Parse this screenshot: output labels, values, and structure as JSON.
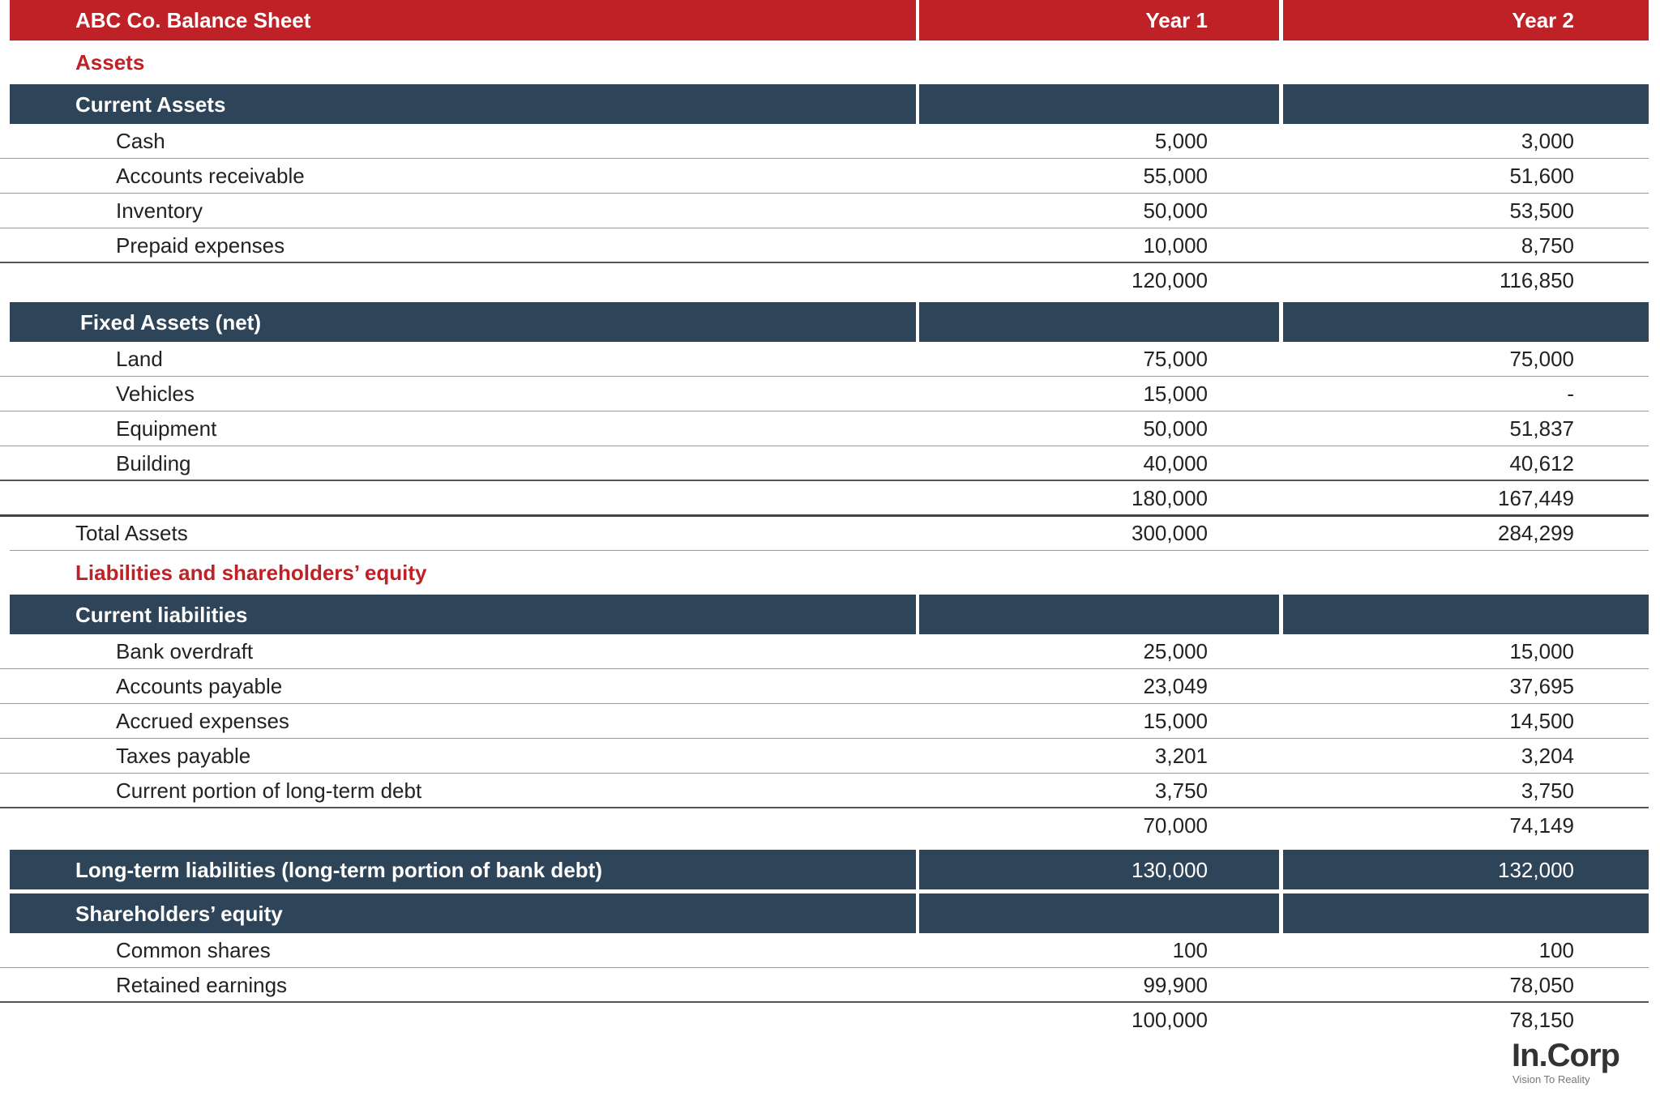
{
  "header": {
    "title": "ABC Co. Balance Sheet",
    "columns": [
      "Year 1",
      "Year 2"
    ]
  },
  "sections": [
    {
      "title": "Assets",
      "groups": [
        {
          "title": "Current Assets",
          "items": [
            {
              "label": "Cash",
              "values": [
                "5,000",
                "3,000"
              ]
            },
            {
              "label": "Accounts receivable",
              "values": [
                "55,000",
                "51,600"
              ]
            },
            {
              "label": "Inventory",
              "values": [
                "50,000",
                "53,500"
              ]
            },
            {
              "label": "Prepaid expenses",
              "values": [
                "10,000",
                "8,750"
              ]
            }
          ],
          "subtotal": [
            "120,000",
            "116,850"
          ]
        },
        {
          "title": "Fixed Assets (net)",
          "items": [
            {
              "label": "Land",
              "values": [
                "75,000",
                "75,000"
              ]
            },
            {
              "label": "Vehicles",
              "values": [
                "15,000",
                "-"
              ]
            },
            {
              "label": "Equipment",
              "values": [
                "50,000",
                "51,837"
              ]
            },
            {
              "label": "Building",
              "values": [
                "40,000",
                "40,612"
              ]
            }
          ],
          "subtotal": [
            "180,000",
            "167,449"
          ]
        }
      ],
      "total": {
        "label": "Total Assets",
        "values": [
          "300,000",
          "284,299"
        ]
      }
    },
    {
      "title": "Liabilities and shareholders’ equity",
      "groups": [
        {
          "title": "Current liabilities",
          "items": [
            {
              "label": "Bank overdraft",
              "values": [
                "25,000",
                "15,000"
              ]
            },
            {
              "label": "Accounts payable",
              "values": [
                "23,049",
                "37,695"
              ]
            },
            {
              "label": "Accrued expenses",
              "values": [
                "15,000",
                "14,500"
              ]
            },
            {
              "label": "Taxes payable",
              "values": [
                "3,201",
                "3,204"
              ]
            },
            {
              "label": "Current portion of long-term debt",
              "values": [
                "3,750",
                "3,750"
              ]
            }
          ],
          "subtotal": [
            "70,000",
            "74,149"
          ]
        },
        {
          "title": "Long-term liabilities (long-term portion of bank debt)",
          "values": [
            "130,000",
            "132,000"
          ]
        },
        {
          "title": "Shareholders’ equity",
          "items": [
            {
              "label": "Common shares",
              "values": [
                "100",
                "100"
              ]
            },
            {
              "label": "Retained earnings",
              "values": [
                "99,900",
                "78,050"
              ]
            }
          ],
          "subtotal": [
            "100,000",
            "78,150"
          ]
        }
      ]
    }
  ],
  "logo": {
    "name": "In.Corp",
    "tagline": "Vision To Reality"
  }
}
